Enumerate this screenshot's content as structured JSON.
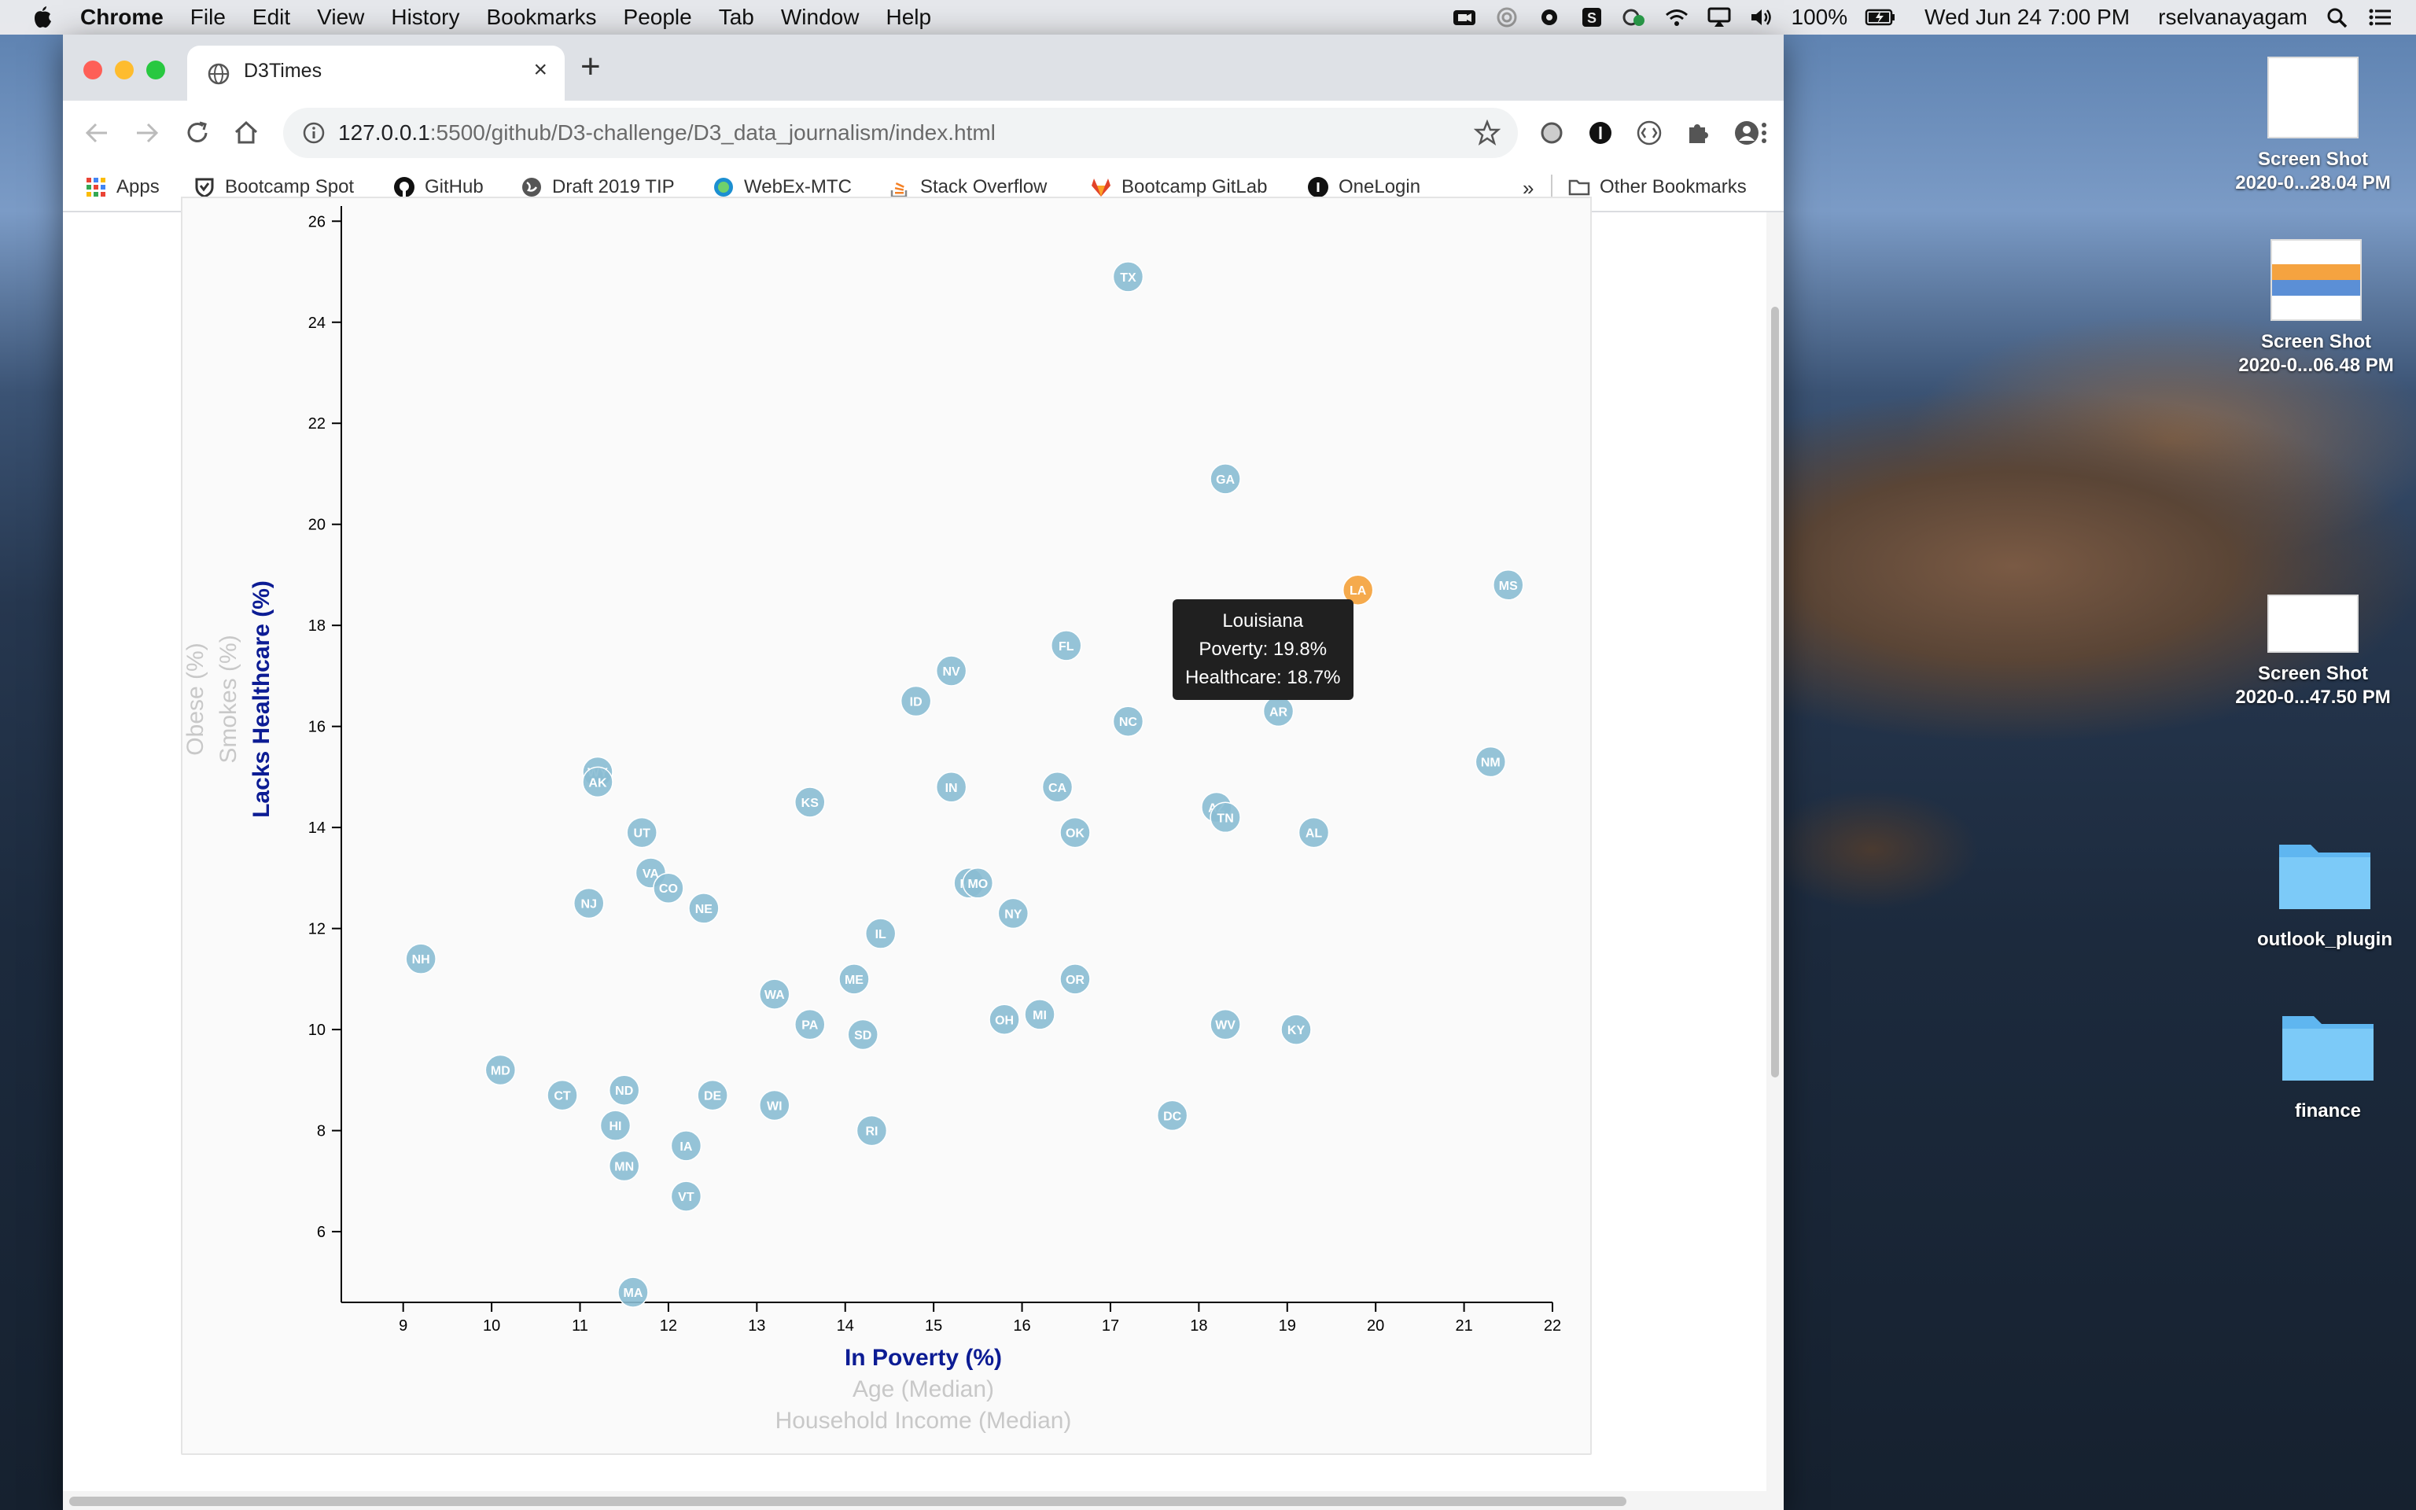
{
  "menubar": {
    "app": "Chrome",
    "items": [
      "File",
      "Edit",
      "View",
      "History",
      "Bookmarks",
      "People",
      "Tab",
      "Window",
      "Help"
    ],
    "battery": "100%",
    "datetime": "Wed Jun 24  7:00 PM",
    "user": "rselvanayagam"
  },
  "browser": {
    "tab_title": "D3Times",
    "url_host": "127.0.0.1",
    "url_path": ":5500/github/D3-challenge/D3_data_journalism/index.html",
    "bookmarks": [
      "Apps",
      "Bootcamp Spot",
      "GitHub",
      "Draft 2019 TIP",
      "WebEx-MTC",
      "Stack Overflow",
      "Bootcamp GitLab",
      "OneLogin"
    ],
    "more_bookmarks": "»",
    "other_bookmarks": "Other Bookmarks"
  },
  "desktop": {
    "items": [
      {
        "line1": "Screen Shot",
        "line2": "2020-0...28.04 PM",
        "kind": "screenshot"
      },
      {
        "line1": "Screen Shot",
        "line2": "2020-0...06.48 PM",
        "kind": "screenshot"
      },
      {
        "line1": "Screen Shot",
        "line2": "2020-0...47.50 PM",
        "kind": "screenshot"
      },
      {
        "line1": "outlook_plugin",
        "line2": "",
        "kind": "folder"
      },
      {
        "line1": "finance",
        "line2": "",
        "kind": "folder"
      }
    ]
  },
  "chart_data": {
    "type": "scatter",
    "title": "",
    "x_labels": [
      {
        "text": "In Poverty (%)",
        "active": true
      },
      {
        "text": "Age (Median)",
        "active": false
      },
      {
        "text": "Household Income (Median)",
        "active": false
      }
    ],
    "y_labels": [
      {
        "text": "Lacks Healthcare (%)",
        "active": true
      },
      {
        "text": "Smokes (%)",
        "active": false
      },
      {
        "text": "Obese (%)",
        "active": false
      }
    ],
    "xlim": [
      8.3,
      22
    ],
    "ylim": [
      4.6,
      26.3
    ],
    "x_ticks": [
      9,
      10,
      11,
      12,
      13,
      14,
      15,
      16,
      17,
      18,
      19,
      20,
      21,
      22
    ],
    "y_ticks": [
      6,
      8,
      10,
      12,
      14,
      16,
      18,
      20,
      22,
      24,
      26
    ],
    "grid": false,
    "marker_color": "#89bdd3",
    "highlight_color": "#f4a13a",
    "active_label_color": "#0c1c94",
    "inactive_label_color": "#c8c8c8",
    "points": [
      {
        "abbr": "TX",
        "x": 17.2,
        "y": 24.9
      },
      {
        "abbr": "GA",
        "x": 18.3,
        "y": 20.9
      },
      {
        "abbr": "MS",
        "x": 21.5,
        "y": 18.8
      },
      {
        "abbr": "LA",
        "x": 19.8,
        "y": 18.7
      },
      {
        "abbr": "FL",
        "x": 16.5,
        "y": 17.6
      },
      {
        "abbr": "NV",
        "x": 15.2,
        "y": 17.1
      },
      {
        "abbr": "ID",
        "x": 14.8,
        "y": 16.5
      },
      {
        "abbr": "AR",
        "x": 18.9,
        "y": 16.3
      },
      {
        "abbr": "NC",
        "x": 17.2,
        "y": 16.1
      },
      {
        "abbr": "NM",
        "x": 21.3,
        "y": 15.3
      },
      {
        "abbr": "WY",
        "x": 11.2,
        "y": 15.1
      },
      {
        "abbr": "AK",
        "x": 11.2,
        "y": 14.9
      },
      {
        "abbr": "IN",
        "x": 15.2,
        "y": 14.8
      },
      {
        "abbr": "CA",
        "x": 16.4,
        "y": 14.8
      },
      {
        "abbr": "KS",
        "x": 13.6,
        "y": 14.5
      },
      {
        "abbr": "AZ",
        "x": 18.2,
        "y": 14.4
      },
      {
        "abbr": "TN",
        "x": 18.3,
        "y": 14.2
      },
      {
        "abbr": "UT",
        "x": 11.7,
        "y": 13.9
      },
      {
        "abbr": "OK",
        "x": 16.6,
        "y": 13.9
      },
      {
        "abbr": "AL",
        "x": 19.3,
        "y": 13.9
      },
      {
        "abbr": "VA",
        "x": 11.8,
        "y": 13.1
      },
      {
        "abbr": "MT",
        "x": 15.4,
        "y": 12.9
      },
      {
        "abbr": "MO",
        "x": 15.5,
        "y": 12.9
      },
      {
        "abbr": "CO",
        "x": 12.0,
        "y": 12.8
      },
      {
        "abbr": "NJ",
        "x": 11.1,
        "y": 12.5
      },
      {
        "abbr": "NE",
        "x": 12.4,
        "y": 12.4
      },
      {
        "abbr": "NY",
        "x": 15.9,
        "y": 12.3
      },
      {
        "abbr": "IL",
        "x": 14.4,
        "y": 11.9
      },
      {
        "abbr": "NH",
        "x": 9.2,
        "y": 11.4
      },
      {
        "abbr": "ME",
        "x": 14.1,
        "y": 11.0
      },
      {
        "abbr": "OR",
        "x": 16.6,
        "y": 11.0
      },
      {
        "abbr": "WA",
        "x": 13.2,
        "y": 10.7
      },
      {
        "abbr": "PA",
        "x": 13.6,
        "y": 10.1
      },
      {
        "abbr": "OH",
        "x": 15.8,
        "y": 10.2
      },
      {
        "abbr": "MI",
        "x": 16.2,
        "y": 10.3
      },
      {
        "abbr": "WV",
        "x": 18.3,
        "y": 10.1
      },
      {
        "abbr": "KY",
        "x": 19.1,
        "y": 10.0
      },
      {
        "abbr": "SD",
        "x": 14.2,
        "y": 9.9
      },
      {
        "abbr": "MD",
        "x": 10.1,
        "y": 9.2
      },
      {
        "abbr": "ND",
        "x": 11.5,
        "y": 8.8
      },
      {
        "abbr": "CT",
        "x": 10.8,
        "y": 8.7
      },
      {
        "abbr": "DE",
        "x": 12.5,
        "y": 8.7
      },
      {
        "abbr": "WI",
        "x": 13.2,
        "y": 8.5
      },
      {
        "abbr": "DC",
        "x": 17.7,
        "y": 8.3
      },
      {
        "abbr": "HI",
        "x": 11.4,
        "y": 8.1
      },
      {
        "abbr": "RI",
        "x": 14.3,
        "y": 8.0
      },
      {
        "abbr": "IA",
        "x": 12.2,
        "y": 7.7
      },
      {
        "abbr": "MN",
        "x": 11.5,
        "y": 7.3
      },
      {
        "abbr": "VT",
        "x": 12.2,
        "y": 6.7
      },
      {
        "abbr": "MA",
        "x": 11.6,
        "y": 4.8
      }
    ],
    "tooltip": {
      "state": "Louisiana",
      "poverty": "Poverty: 19.8%",
      "healthcare": "Healthcare: 18.7%",
      "anchor_abbr": "LA"
    }
  }
}
